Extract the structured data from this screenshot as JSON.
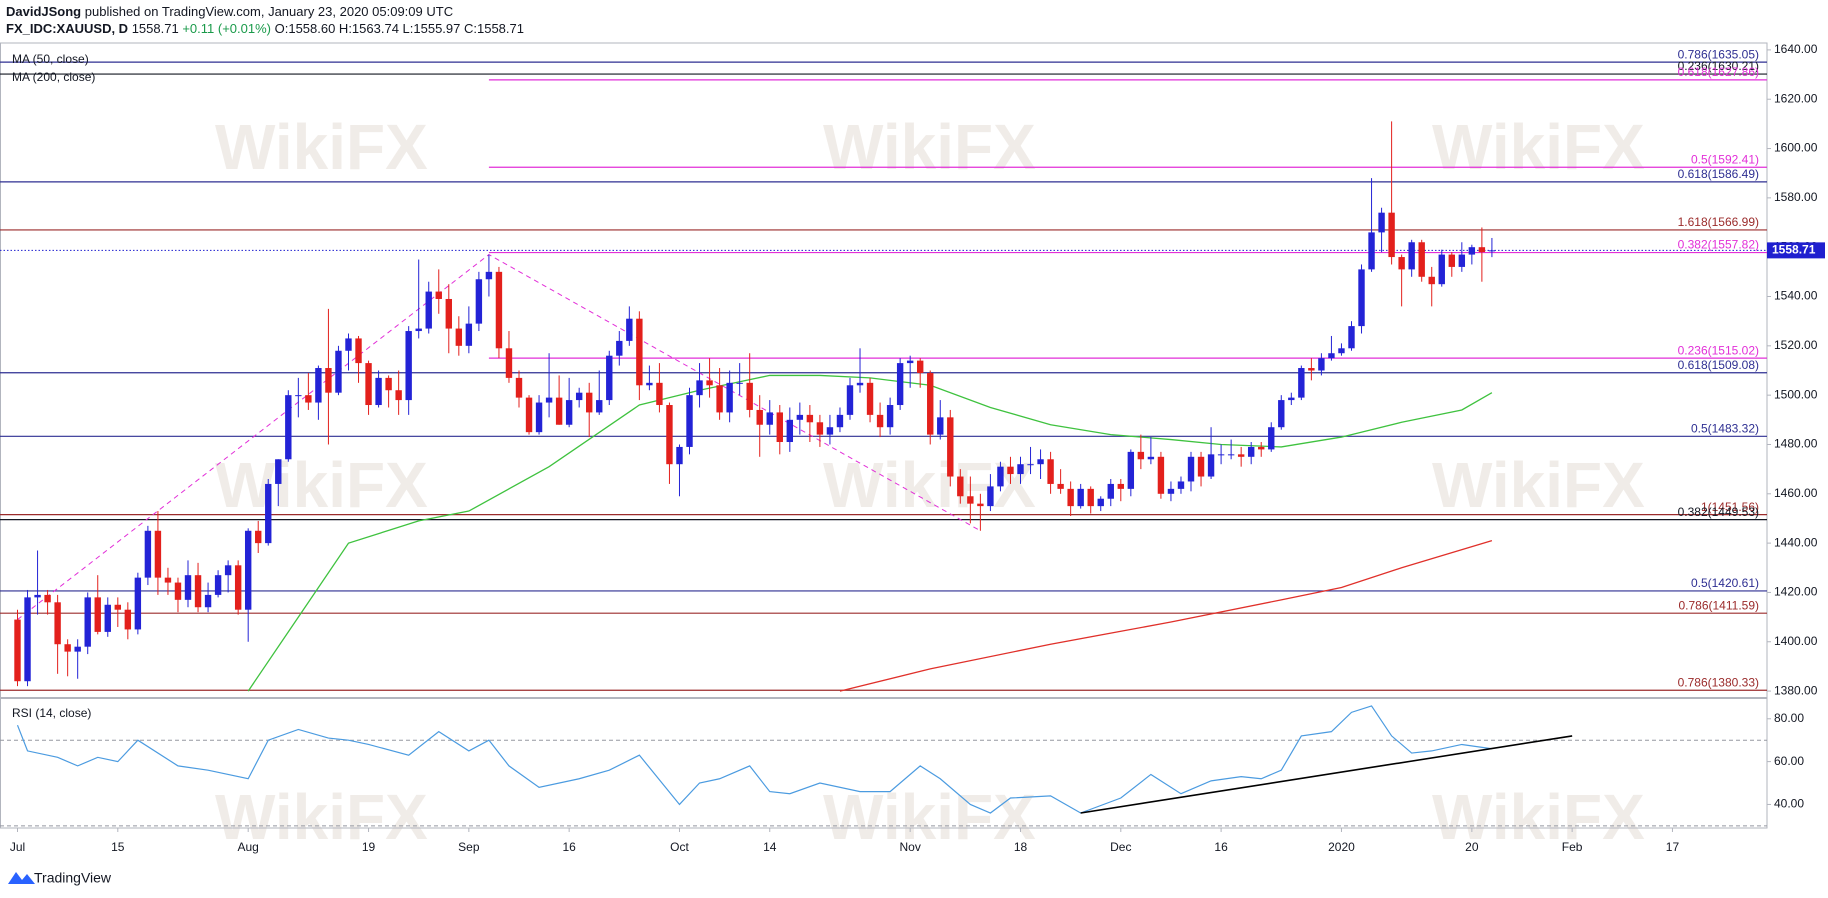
{
  "header": {
    "author": "DavidJSong",
    "published": "published on TradingView.com, January 23, 2020 05:09:09 UTC",
    "symbol": "FX_IDC:XAUUSD, D",
    "price": "1558.71",
    "change": "+0.11 (+0.01%)",
    "ohlc_text": "O:1558.60 H:1563.74 L:1555.97 C:1558.71"
  },
  "watermark": "WikiFX",
  "footer": "TradingView",
  "chart_data": {
    "type": "candlestick",
    "up_color": "#2323d6",
    "down_color": "#e3201c",
    "ylim": [
      1377.6,
      1642.8
    ],
    "yticks": [
      {
        "value": 1380,
        "label": "1380.00"
      },
      {
        "value": 1400,
        "label": "1400.00"
      },
      {
        "value": 1420,
        "label": "1420.00"
      },
      {
        "value": 1440,
        "label": "1440.00"
      },
      {
        "value": 1460,
        "label": "1460.00"
      },
      {
        "value": 1480,
        "label": "1480.00"
      },
      {
        "value": 1500,
        "label": "1500.00"
      },
      {
        "value": 1520,
        "label": "1520.00"
      },
      {
        "value": 1540,
        "label": "1540.00"
      },
      {
        "value": 1560,
        "label": "1560.00"
      },
      {
        "value": 1580,
        "label": "1580.00"
      },
      {
        "value": 1600,
        "label": "1600.00"
      },
      {
        "value": 1620,
        "label": "1620.00"
      },
      {
        "value": 1640,
        "label": "1640.00"
      }
    ],
    "xticks": [
      {
        "value": 0,
        "label": "Jul"
      },
      {
        "value": 10,
        "label": "15"
      },
      {
        "value": 23,
        "label": "Aug"
      },
      {
        "value": 35,
        "label": "19"
      },
      {
        "value": 45,
        "label": "Sep"
      },
      {
        "value": 55,
        "label": "16"
      },
      {
        "value": 66,
        "label": "Oct"
      },
      {
        "value": 75,
        "label": "14"
      },
      {
        "value": 89,
        "label": "Nov"
      },
      {
        "value": 100,
        "label": "18"
      },
      {
        "value": 110,
        "label": "Dec"
      },
      {
        "value": 120,
        "label": "16"
      },
      {
        "value": 132,
        "label": "2020"
      },
      {
        "value": 145,
        "label": "20"
      },
      {
        "value": 155,
        "label": "Feb"
      },
      {
        "value": 165,
        "label": "17"
      }
    ],
    "last_price": 1558.71,
    "last_color": "#1f1fcf",
    "ohlc": [
      [
        1409,
        1413,
        1382,
        1384
      ],
      [
        1384,
        1421,
        1382,
        1418
      ],
      [
        1418,
        1437,
        1411,
        1419
      ],
      [
        1419,
        1421,
        1411,
        1416
      ],
      [
        1416,
        1419,
        1387,
        1399
      ],
      [
        1399,
        1401,
        1386,
        1396
      ],
      [
        1396,
        1401,
        1385,
        1398
      ],
      [
        1398,
        1420,
        1395,
        1418
      ],
      [
        1418,
        1427,
        1403,
        1404
      ],
      [
        1404,
        1418,
        1402,
        1415
      ],
      [
        1415,
        1418,
        1406,
        1413
      ],
      [
        1413,
        1416,
        1401,
        1405
      ],
      [
        1405,
        1428,
        1403,
        1426
      ],
      [
        1426,
        1447,
        1423,
        1445
      ],
      [
        1445,
        1453,
        1419,
        1426
      ],
      [
        1426,
        1430,
        1419,
        1424
      ],
      [
        1424,
        1426,
        1412,
        1417
      ],
      [
        1417,
        1433,
        1414,
        1427
      ],
      [
        1427,
        1432,
        1412,
        1414
      ],
      [
        1414,
        1424,
        1412,
        1419
      ],
      [
        1419,
        1429,
        1418,
        1427
      ],
      [
        1427,
        1433,
        1420,
        1431
      ],
      [
        1431,
        1433,
        1411,
        1413
      ],
      [
        1413,
        1446,
        1400,
        1445
      ],
      [
        1445,
        1449,
        1436,
        1440
      ],
      [
        1440,
        1466,
        1439,
        1464
      ],
      [
        1464,
        1474,
        1455,
        1474
      ],
      [
        1474,
        1502,
        1473,
        1500
      ],
      [
        1500,
        1507,
        1491,
        1500
      ],
      [
        1500,
        1509,
        1494,
        1497
      ],
      [
        1497,
        1512,
        1490,
        1511
      ],
      [
        1511,
        1535,
        1480,
        1501
      ],
      [
        1501,
        1520,
        1500,
        1518
      ],
      [
        1518,
        1525,
        1510,
        1523
      ],
      [
        1523,
        1524,
        1505,
        1513
      ],
      [
        1513,
        1514,
        1492,
        1496
      ],
      [
        1496,
        1510,
        1495,
        1507
      ],
      [
        1507,
        1508,
        1495,
        1502
      ],
      [
        1502,
        1510,
        1492,
        1498
      ],
      [
        1498,
        1528,
        1492,
        1526
      ],
      [
        1526,
        1555,
        1523,
        1527
      ],
      [
        1527,
        1546,
        1525,
        1542
      ],
      [
        1542,
        1551,
        1533,
        1539
      ],
      [
        1539,
        1545,
        1517,
        1527
      ],
      [
        1527,
        1532,
        1516,
        1520
      ],
      [
        1520,
        1536,
        1517,
        1529
      ],
      [
        1529,
        1550,
        1526,
        1547
      ],
      [
        1547,
        1557,
        1540,
        1550
      ],
      [
        1550,
        1552,
        1515,
        1519
      ],
      [
        1519,
        1526,
        1505,
        1507
      ],
      [
        1507,
        1510,
        1495,
        1499
      ],
      [
        1499,
        1500,
        1484,
        1485
      ],
      [
        1485,
        1500,
        1484,
        1497
      ],
      [
        1497,
        1517,
        1491,
        1499
      ],
      [
        1499,
        1508,
        1488,
        1488
      ],
      [
        1488,
        1507,
        1487,
        1498
      ],
      [
        1498,
        1503,
        1495,
        1501
      ],
      [
        1501,
        1505,
        1483,
        1493
      ],
      [
        1493,
        1510,
        1492,
        1498
      ],
      [
        1498,
        1518,
        1496,
        1516
      ],
      [
        1516,
        1526,
        1512,
        1522
      ],
      [
        1522,
        1536,
        1520,
        1531
      ],
      [
        1531,
        1534,
        1498,
        1504
      ],
      [
        1504,
        1512,
        1502,
        1505
      ],
      [
        1505,
        1513,
        1493,
        1496
      ],
      [
        1496,
        1497,
        1464,
        1472
      ],
      [
        1472,
        1480,
        1459,
        1479
      ],
      [
        1479,
        1503,
        1476,
        1500
      ],
      [
        1500,
        1513,
        1495,
        1506
      ],
      [
        1506,
        1515,
        1499,
        1504
      ],
      [
        1504,
        1511,
        1490,
        1493
      ],
      [
        1493,
        1510,
        1489,
        1505
      ],
      [
        1505,
        1513,
        1500,
        1505
      ],
      [
        1505,
        1517,
        1491,
        1494
      ],
      [
        1494,
        1500,
        1475,
        1488
      ],
      [
        1488,
        1498,
        1484,
        1493
      ],
      [
        1493,
        1496,
        1476,
        1481
      ],
      [
        1481,
        1495,
        1477,
        1490
      ],
      [
        1490,
        1497,
        1484,
        1492
      ],
      [
        1492,
        1496,
        1481,
        1489
      ],
      [
        1489,
        1492,
        1479,
        1484
      ],
      [
        1484,
        1492,
        1480,
        1487
      ],
      [
        1487,
        1495,
        1485,
        1492
      ],
      [
        1492,
        1507,
        1490,
        1504
      ],
      [
        1504,
        1519,
        1501,
        1505
      ],
      [
        1505,
        1507,
        1489,
        1492
      ],
      [
        1492,
        1497,
        1483,
        1487
      ],
      [
        1487,
        1499,
        1484,
        1496
      ],
      [
        1496,
        1515,
        1494,
        1513
      ],
      [
        1513,
        1516,
        1503,
        1514
      ],
      [
        1514,
        1515,
        1503,
        1509
      ],
      [
        1509,
        1510,
        1480,
        1484
      ],
      [
        1484,
        1498,
        1482,
        1491
      ],
      [
        1491,
        1494,
        1463,
        1467
      ],
      [
        1467,
        1470,
        1456,
        1459
      ],
      [
        1459,
        1467,
        1448,
        1456
      ],
      [
        1456,
        1460,
        1445,
        1455
      ],
      [
        1455,
        1468,
        1453,
        1463
      ],
      [
        1463,
        1473,
        1461,
        1471
      ],
      [
        1471,
        1475,
        1464,
        1468
      ],
      [
        1468,
        1475,
        1464,
        1472
      ],
      [
        1472,
        1479,
        1468,
        1472
      ],
      [
        1472,
        1478,
        1466,
        1474
      ],
      [
        1474,
        1477,
        1460,
        1464
      ],
      [
        1464,
        1470,
        1460,
        1462
      ],
      [
        1462,
        1465,
        1451,
        1455
      ],
      [
        1455,
        1464,
        1454,
        1462
      ],
      [
        1462,
        1463,
        1452,
        1455
      ],
      [
        1455,
        1459,
        1453,
        1458
      ],
      [
        1458,
        1466,
        1455,
        1464
      ],
      [
        1464,
        1466,
        1457,
        1462
      ],
      [
        1462,
        1478,
        1459,
        1477
      ],
      [
        1477,
        1484,
        1470,
        1474
      ],
      [
        1474,
        1483,
        1472,
        1475
      ],
      [
        1475,
        1477,
        1458,
        1460
      ],
      [
        1460,
        1465,
        1457,
        1462
      ],
      [
        1462,
        1467,
        1460,
        1465
      ],
      [
        1465,
        1477,
        1461,
        1475
      ],
      [
        1475,
        1477,
        1463,
        1467
      ],
      [
        1467,
        1487,
        1466,
        1476
      ],
      [
        1476,
        1480,
        1472,
        1476
      ],
      [
        1476,
        1482,
        1474,
        1476
      ],
      [
        1476,
        1479,
        1471,
        1475
      ],
      [
        1475,
        1481,
        1472,
        1479
      ],
      [
        1479,
        1481,
        1475,
        1478
      ],
      [
        1478,
        1489,
        1477,
        1487
      ],
      [
        1487,
        1500,
        1486,
        1498
      ],
      [
        1498,
        1501,
        1496,
        1499
      ],
      [
        1499,
        1512,
        1498,
        1511
      ],
      [
        1511,
        1515,
        1506,
        1510
      ],
      [
        1510,
        1517,
        1508,
        1515
      ],
      [
        1515,
        1524,
        1514,
        1517
      ],
      [
        1517,
        1521,
        1516,
        1519
      ],
      [
        1519,
        1530,
        1518,
        1528
      ],
      [
        1528,
        1553,
        1525,
        1551
      ],
      [
        1551,
        1588,
        1550,
        1566
      ],
      [
        1566,
        1576,
        1558,
        1574
      ],
      [
        1574,
        1611,
        1553,
        1556
      ],
      [
        1556,
        1557,
        1536,
        1551
      ],
      [
        1551,
        1563,
        1548,
        1562
      ],
      [
        1562,
        1563,
        1546,
        1548
      ],
      [
        1548,
        1552,
        1536,
        1545
      ],
      [
        1545,
        1559,
        1544,
        1557
      ],
      [
        1557,
        1558,
        1548,
        1552
      ],
      [
        1552,
        1562,
        1550,
        1557
      ],
      [
        1557,
        1561,
        1553,
        1560
      ],
      [
        1560,
        1568,
        1546,
        1558
      ],
      [
        1558.6,
        1563.74,
        1555.97,
        1558.71
      ]
    ],
    "series": [
      {
        "name": "MA (50, close)",
        "color": "#3fc23f",
        "x": [
          23,
          28,
          33,
          40,
          45,
          53,
          62,
          68,
          75,
          80,
          85,
          91,
          97,
          103,
          109,
          115,
          120,
          126,
          132,
          138,
          144,
          147
        ],
        "values": [
          1380,
          1410,
          1440,
          1449,
          1453,
          1471,
          1496,
          1502,
          1508,
          1508,
          1507,
          1504,
          1495,
          1488,
          1484,
          1482,
          1480,
          1479,
          1483,
          1489,
          1494,
          1501
        ]
      },
      {
        "name": "MA (200, close)",
        "color": "#e0302a",
        "x": [
          82,
          91,
          103,
          115,
          126,
          132,
          138,
          147
        ],
        "values": [
          1380,
          1389,
          1399,
          1408,
          1417,
          1422,
          1430,
          1441
        ]
      }
    ],
    "levels": [
      {
        "label": "0.786(1635.05)",
        "value": 1635.05,
        "color": "#2e2f92"
      },
      {
        "label": "0.236(1630.21)",
        "value": 1630.21,
        "color": "#131722"
      },
      {
        "label": "0.618(1586.49)",
        "value": 1586.49,
        "color": "#2e2f92"
      },
      {
        "label": "1.618(1566.99)",
        "value": 1566.99,
        "color": "#9b2b2b"
      },
      {
        "label": "0.618(1509.08)",
        "value": 1509.08,
        "color": "#2e2f92"
      },
      {
        "label": "0.5(1483.32)",
        "value": 1483.32,
        "color": "#2e2f92"
      },
      {
        "label": "1(1451.56)",
        "value": 1451.56,
        "color": "#9b2b2b"
      },
      {
        "label": "0.382(1449.53)",
        "value": 1449.53,
        "color": "#131722"
      },
      {
        "label": "0.5(1420.61)",
        "value": 1420.61,
        "color": "#2e2f92"
      },
      {
        "label": "0.786(1411.59)",
        "value": 1411.59,
        "color": "#9b2b2b"
      },
      {
        "label": "0.786(1380.33)",
        "value": 1380.33,
        "color": "#9b2b2b"
      }
    ],
    "retracement_levels": [
      {
        "label": "0.618(1627.86)",
        "value": 1627.86,
        "color": "#e22fd8"
      },
      {
        "label": "0.5(1592.41)",
        "value": 1592.41,
        "color": "#e22fd8"
      },
      {
        "label": "0.382(1557.82)",
        "value": 1557.82,
        "color": "#e22fd8"
      },
      {
        "label": "0.236(1515.02)",
        "value": 1515.02,
        "color": "#e22fd8"
      }
    ],
    "rsi": {
      "name": "RSI (14, close)",
      "color": "#4b9be0",
      "ylim": [
        29,
        89
      ],
      "yticks": [
        {
          "value": 40,
          "label": "40.00"
        },
        {
          "value": 60,
          "label": "60.00"
        },
        {
          "value": 80,
          "label": "80.00"
        }
      ],
      "levels": [
        30,
        70
      ],
      "x": [
        0,
        1,
        4,
        6,
        8,
        10,
        12,
        16,
        19,
        23,
        25,
        28,
        31,
        33,
        35,
        39,
        42,
        45,
        47,
        49,
        52,
        56,
        59,
        62,
        66,
        68,
        70,
        73,
        75,
        77,
        80,
        84,
        87,
        90,
        92,
        95,
        97,
        99,
        103,
        106,
        110,
        113,
        116,
        119,
        122,
        124,
        126,
        128,
        131,
        133,
        135,
        137,
        139,
        141,
        144,
        147
      ],
      "values": [
        77,
        65,
        62,
        58,
        62,
        60,
        70,
        58,
        56,
        52,
        70,
        75,
        71,
        70,
        68,
        63,
        74,
        65,
        70,
        58,
        48,
        52,
        56,
        63,
        40,
        50,
        52,
        58,
        46,
        45,
        50,
        46,
        46,
        58,
        52,
        40,
        36,
        43,
        44,
        36,
        43,
        54,
        45,
        51,
        53,
        52,
        56,
        72,
        74,
        83,
        86,
        72,
        64,
        65,
        68,
        66
      ],
      "trendline": {
        "x": [
          106,
          155
        ],
        "values": [
          36,
          72
        ]
      }
    }
  }
}
